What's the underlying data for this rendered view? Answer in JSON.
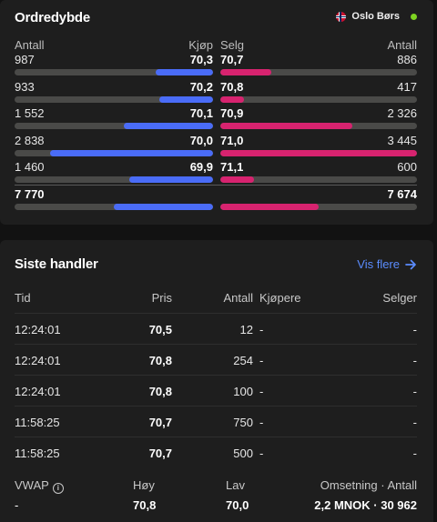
{
  "depth": {
    "title": "Ordredybde",
    "exchange": "Oslo Børs",
    "colors": {
      "bid": "#4a6cf7",
      "ask": "#d7236f",
      "live": "#7ed321"
    },
    "headers": {
      "bid_qty": "Antall",
      "bid": "Kjøp",
      "ask": "Selg",
      "ask_qty": "Antall"
    },
    "rows": [
      {
        "bid_qty": "987",
        "bid_price": "70,3",
        "ask_price": "70,7",
        "ask_qty": "886",
        "bid_fill": 0.29,
        "ask_fill": 0.26
      },
      {
        "bid_qty": "933",
        "bid_price": "70,2",
        "ask_price": "70,8",
        "ask_qty": "417",
        "bid_fill": 0.27,
        "ask_fill": 0.12
      },
      {
        "bid_qty": "1 552",
        "bid_price": "70,1",
        "ask_price": "70,9",
        "ask_qty": "2 326",
        "bid_fill": 0.45,
        "ask_fill": 0.67
      },
      {
        "bid_qty": "2 838",
        "bid_price": "70,0",
        "ask_price": "71,0",
        "ask_qty": "3 445",
        "bid_fill": 0.82,
        "ask_fill": 1.0
      },
      {
        "bid_qty": "1 460",
        "bid_price": "69,9",
        "ask_price": "71,1",
        "ask_qty": "600",
        "bid_fill": 0.42,
        "ask_fill": 0.17
      }
    ],
    "total": {
      "bid_qty": "7 770",
      "ask_qty": "7 674",
      "bid_fill": 0.5,
      "ask_fill": 0.5
    }
  },
  "trades": {
    "title": "Siste handler",
    "more_label": "Vis flere",
    "headers": {
      "time": "Tid",
      "price": "Pris",
      "qty": "Antall",
      "buyer": "Kjøpere",
      "seller": "Selger"
    },
    "rows": [
      {
        "time": "12:24:01",
        "price": "70,5",
        "qty": "12",
        "buyer": "-",
        "seller": "-"
      },
      {
        "time": "12:24:01",
        "price": "70,8",
        "qty": "254",
        "buyer": "-",
        "seller": "-"
      },
      {
        "time": "12:24:01",
        "price": "70,8",
        "qty": "100",
        "buyer": "-",
        "seller": "-"
      },
      {
        "time": "11:58:25",
        "price": "70,7",
        "qty": "750",
        "buyer": "-",
        "seller": "-"
      },
      {
        "time": "11:58:25",
        "price": "70,7",
        "qty": "500",
        "buyer": "-",
        "seller": "-"
      }
    ],
    "summary": {
      "vwap_label": "VWAP",
      "vwap_value": "-",
      "high_label": "Høy",
      "high_value": "70,8",
      "low_label": "Lav",
      "low_value": "70,0",
      "turnover_label": "Omsetning · Antall",
      "turnover_value": "2,2 MNOK · 30 962"
    }
  }
}
